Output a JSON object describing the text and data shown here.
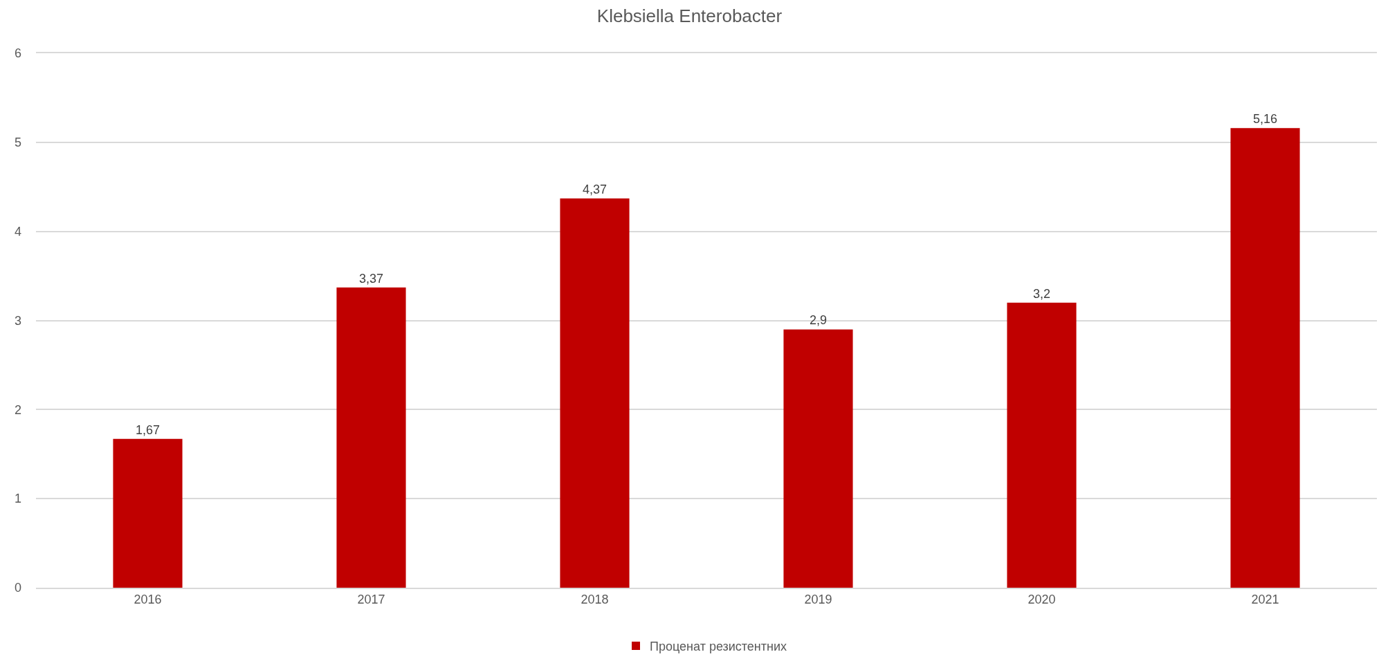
{
  "chart_data": {
    "type": "bar",
    "title": "Klebsiella Enterobacter",
    "categories": [
      "2016",
      "2017",
      "2018",
      "2019",
      "2020",
      "2021"
    ],
    "series": [
      {
        "name": "Проценат резистентних",
        "color": "#c00000",
        "values": [
          1.67,
          3.37,
          4.37,
          2.9,
          3.2,
          5.16
        ],
        "value_labels": [
          "1,67",
          "3,37",
          "4,37",
          "2,9",
          "3,2",
          "5,16"
        ]
      }
    ],
    "ylim": [
      0,
      6
    ],
    "yticks": [
      0,
      1,
      2,
      3,
      4,
      5,
      6
    ],
    "grid": "y",
    "legend": "bottom"
  }
}
